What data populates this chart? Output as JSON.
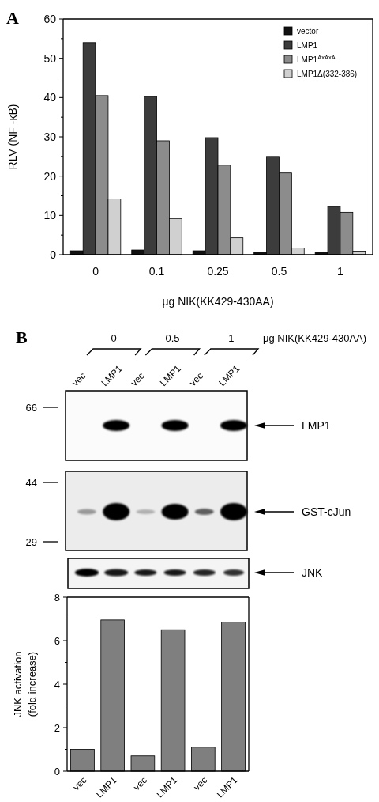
{
  "chart_data": [
    {
      "type": "bar",
      "title": "A",
      "categories": [
        "0",
        "0.1",
        "0.25",
        "0.5",
        "1"
      ],
      "series": [
        {
          "name": "vector",
          "color": "#111111",
          "values": [
            1,
            1.2,
            1,
            0.7,
            0.7
          ]
        },
        {
          "name": "LMP1",
          "color": "#3c3c3c",
          "values": [
            54,
            40.3,
            29.8,
            25,
            12.3
          ]
        },
        {
          "name": "LMP1$^{AxAxA}$",
          "color": "#8c8c8c",
          "values": [
            40.5,
            29,
            22.8,
            20.8,
            10.8
          ]
        },
        {
          "name": "LMP1Δ(332-386)",
          "color": "#d0d0d0",
          "values": [
            14.2,
            9.2,
            4.3,
            1.7,
            0.9
          ]
        }
      ],
      "ylim": [
        0,
        60
      ],
      "yticks": [
        0,
        {
          "value": 5,
          "label": null
        },
        10,
        {
          "value": 15,
          "label": null
        },
        20,
        {
          "value": 25,
          "label": null
        },
        30,
        {
          "value": 35,
          "label": null
        },
        40,
        {
          "value": 45,
          "label": null
        },
        50,
        {
          "value": 55,
          "label": null
        },
        60
      ],
      "xlabel": "μg NIK(KK429-430AA)",
      "ylabel": "RLV (NF -κB)",
      "legend": "top right"
    },
    {
      "type": "other",
      "title": "B",
      "annotations": [
        "0",
        "0.5",
        "1",
        "μg NIK(KK429-430AA)",
        "vec",
        "LMP1",
        "vec",
        "LMP1",
        "vec",
        "LMP1",
        "66",
        "44",
        "29",
        "LMP1",
        "GST-cJun",
        "JNK"
      ]
    },
    {
      "type": "bar",
      "categories": [
        "vec",
        "LMP1",
        "vec",
        "LMP1",
        "vec",
        "LMP1"
      ],
      "values": [
        1,
        6.95,
        0.7,
        6.5,
        1.1,
        6.85
      ],
      "color": "#7f7f7f",
      "ylim": [
        0,
        8
      ],
      "yticks": [
        0,
        {
          "value": 1,
          "label": null
        },
        2,
        {
          "value": 3,
          "label": null
        },
        4,
        {
          "value": 5,
          "label": null
        },
        6,
        {
          "value": 7,
          "label": null
        },
        8
      ],
      "ylabel": "JNK activation\n(fold increase)"
    }
  ]
}
